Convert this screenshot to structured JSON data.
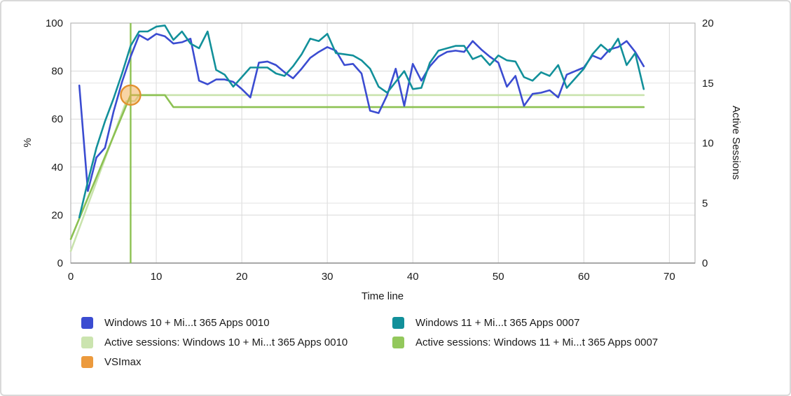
{
  "chart_data": {
    "type": "line",
    "title": "",
    "xlabel": "Time line",
    "ylabel_left": "%",
    "ylabel_right": "Active Sessions",
    "x_range": [
      0,
      73
    ],
    "y_left_range": [
      0,
      100
    ],
    "y_right_range": [
      0,
      20
    ],
    "x_ticks": [
      0,
      10,
      20,
      30,
      40,
      50,
      60,
      70
    ],
    "y_left_ticks": [
      0,
      20,
      40,
      60,
      80,
      100
    ],
    "y_right_ticks": [
      0,
      5,
      10,
      15,
      20
    ],
    "grid": true,
    "legend_position": "bottom",
    "series": [
      {
        "name": "Windows 10 + Mi...t 365 Apps 0010",
        "color": "#3b4cd1",
        "axis": "left",
        "x_start": 1,
        "y": [
          74,
          30,
          44,
          48,
          63,
          75.5,
          86,
          95,
          93,
          95.5,
          94.5,
          91.5,
          92,
          93.5,
          76,
          74.5,
          76.5,
          76.5,
          75.5,
          72.5,
          69,
          83.5,
          84,
          82.5,
          79.5,
          77,
          81,
          85.5,
          88,
          90,
          88.5,
          82.5,
          83,
          79,
          63.5,
          62.5,
          70,
          81,
          65.5,
          83,
          76,
          82,
          86,
          88,
          88.5,
          88,
          92.5,
          89,
          86,
          83.5,
          73.5,
          78,
          65.5,
          70.5,
          71,
          72,
          69,
          78.5,
          80,
          81.5,
          86.5,
          85,
          89,
          90,
          92.5,
          88,
          82
        ]
      },
      {
        "name": "Windows 11 + Mi...t 365 Apps 0007",
        "color": "#12909a",
        "axis": "left",
        "x_start": 1,
        "y": [
          19,
          34,
          48,
          59,
          68.5,
          79,
          90.5,
          96.5,
          96.5,
          98.5,
          99,
          93,
          96.5,
          91.5,
          89.5,
          96.5,
          80.5,
          78.5,
          73.5,
          77.5,
          81.5,
          81.5,
          81.5,
          79,
          78,
          82,
          87,
          93.5,
          92.5,
          95.5,
          87.5,
          87,
          86.5,
          84.5,
          81,
          73.5,
          71,
          75.5,
          80,
          72.5,
          73,
          83.5,
          88.5,
          89.5,
          90.5,
          90.5,
          85,
          86.5,
          82.5,
          86.5,
          84.5,
          84,
          77.5,
          76,
          79.5,
          78,
          82.5,
          73,
          77,
          81,
          87,
          91,
          88,
          93.5,
          82.5,
          87.5,
          72.5
        ]
      },
      {
        "name": "Active sessions: Windows 10 + Mi...t 365 Apps 0010",
        "color": "#c9e3ad",
        "axis": "right",
        "x": [
          0,
          6.5,
          7.5,
          8,
          67
        ],
        "y": [
          1,
          13.5,
          13.5,
          14,
          14
        ]
      },
      {
        "name": "Active sessions: Windows 11 + Mi...t 365 Apps 0007",
        "color": "#8cc152",
        "axis": "right",
        "x": [
          0,
          7,
          11,
          12,
          67
        ],
        "y": [
          2,
          14,
          14,
          13,
          13
        ]
      }
    ],
    "vsimax_marker": {
      "label": "VSImax",
      "x": 7,
      "active_sessions": 14,
      "line_color": "#8cc152",
      "marker_fill": "#f2a94c",
      "marker_stroke": "#e2902f"
    }
  },
  "legend": {
    "items": [
      {
        "label": "Windows 10 + Mi...t 365 Apps 0010",
        "color": "#3b4cd1",
        "col": 0
      },
      {
        "label": "Active sessions: Windows 10 + Mi...t 365 Apps 0010",
        "color": "#cbe4af",
        "col": 0
      },
      {
        "label": "VSImax",
        "color": "#ec9a3d",
        "col": 0
      },
      {
        "label": "Windows 11 + Mi...t 365 Apps 0007",
        "color": "#12909a",
        "col": 1
      },
      {
        "label": "Active sessions: Windows 11 + Mi...t 365 Apps 0007",
        "color": "#93c85c",
        "col": 1
      }
    ]
  }
}
